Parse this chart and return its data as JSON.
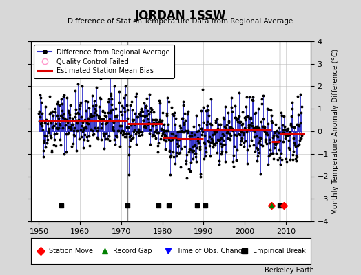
{
  "title": "JORDAN 1SSW",
  "subtitle": "Difference of Station Temperature Data from Regional Average",
  "ylabel": "Monthly Temperature Anomaly Difference (°C)",
  "credit": "Berkeley Earth",
  "xlim": [
    1948,
    2016
  ],
  "ylim": [
    -4,
    4
  ],
  "yticks": [
    -4,
    -3,
    -2,
    -1,
    0,
    1,
    2,
    3,
    4
  ],
  "xticks": [
    1950,
    1960,
    1970,
    1980,
    1990,
    2000,
    2010
  ],
  "bg_color": "#d8d8d8",
  "plot_bg_color": "#ffffff",
  "line_color": "#3333cc",
  "marker_color": "#000000",
  "bias_color": "#dd0000",
  "seed": 42,
  "start_year": 1950,
  "end_year": 2014,
  "bias_segments": [
    {
      "start": 1950.0,
      "end": 1971.5,
      "value": 0.45
    },
    {
      "start": 1971.5,
      "end": 1980.0,
      "value": 0.35
    },
    {
      "start": 1980.0,
      "end": 1983.5,
      "value": -0.28
    },
    {
      "start": 1983.5,
      "end": 1990.0,
      "value": -0.35
    },
    {
      "start": 1990.0,
      "end": 2006.5,
      "value": 0.05
    },
    {
      "start": 2006.5,
      "end": 2008.5,
      "value": -0.45
    },
    {
      "start": 2008.5,
      "end": 2014.5,
      "value": -0.1
    }
  ],
  "break_lines": [
    1971.5,
    2008.5
  ],
  "empirical_breaks": [
    1955.5,
    1971.5,
    1979.0,
    1981.5,
    1988.5,
    1990.5,
    2008.5
  ],
  "station_moves": [
    2006.5,
    2009.5
  ],
  "record_gaps": [
    2006.5
  ],
  "obs_changes": [],
  "marker_y": -3.3,
  "noise_scale": 0.72
}
